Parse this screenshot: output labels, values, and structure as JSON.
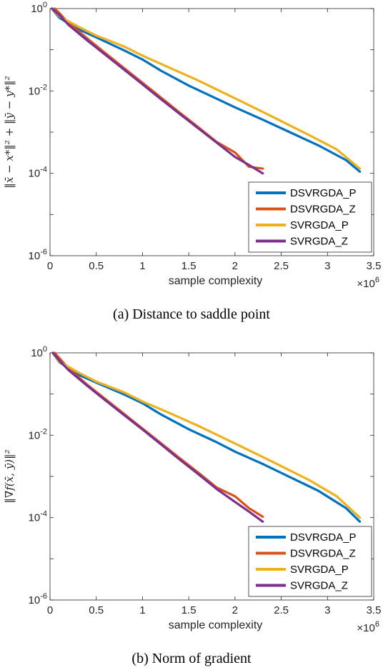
{
  "chart_data": [
    {
      "type": "line",
      "caption": "(a) Distance to saddle point",
      "xlabel": "sample complexity",
      "x_multiplier": "×10",
      "x_multiplier_exp": "6",
      "ylabel": "‖x̄ − x*‖² + ‖ȳ − y*‖²",
      "xlim": [
        0,
        3.5
      ],
      "ylim": [
        1e-06,
        1
      ],
      "yscale": "log",
      "xticks": [
        "0",
        "0.5",
        "1",
        "1.5",
        "2",
        "2.5",
        "3",
        "3.5"
      ],
      "yticks": [
        {
          "base": "10",
          "exp": "0"
        },
        {
          "base": "10",
          "exp": "-2"
        },
        {
          "base": "10",
          "exp": "-4"
        },
        {
          "base": "10",
          "exp": "-6"
        }
      ],
      "legend_position": "bottom-right",
      "series": [
        {
          "name": "DSVRGDA_P",
          "color": "#0072BD",
          "x": [
            0.02,
            0.1,
            0.3,
            0.5,
            0.8,
            1.0,
            1.2,
            1.5,
            1.8,
            2.0,
            2.3,
            2.6,
            2.9,
            3.2,
            3.35
          ],
          "y": [
            1.0,
            0.6,
            0.32,
            0.2,
            0.097,
            0.058,
            0.031,
            0.0135,
            0.0065,
            0.004,
            0.002,
            0.00098,
            0.00048,
            0.00021,
            0.00011
          ]
        },
        {
          "name": "DSVRGDA_Z",
          "color": "#D95319",
          "x": [
            0.05,
            0.1,
            0.2,
            0.4,
            0.6,
            0.8,
            1.0,
            1.2,
            1.4,
            1.6,
            1.8,
            2.0,
            2.15,
            2.3
          ],
          "y": [
            1.0,
            0.78,
            0.45,
            0.19,
            0.082,
            0.036,
            0.0158,
            0.0069,
            0.003,
            0.00134,
            0.00058,
            0.00032,
            0.000145,
            0.00013
          ]
        },
        {
          "name": "SVRGDA_P",
          "color": "#EDB120",
          "x": [
            0.02,
            0.1,
            0.3,
            0.5,
            0.8,
            1.0,
            1.3,
            1.6,
            2.0,
            2.4,
            2.8,
            3.1,
            3.35
          ],
          "y": [
            1.0,
            0.65,
            0.37,
            0.22,
            0.12,
            0.072,
            0.036,
            0.018,
            0.0066,
            0.0024,
            0.00085,
            0.00038,
            0.00013
          ]
        },
        {
          "name": "SVRGDA_Z",
          "color": "#7E2F8E",
          "x": [
            0.02,
            0.1,
            0.2,
            0.4,
            0.6,
            0.8,
            1.0,
            1.2,
            1.4,
            1.6,
            1.8,
            2.0,
            2.15,
            2.3
          ],
          "y": [
            1.0,
            0.7,
            0.4,
            0.17,
            0.075,
            0.033,
            0.0145,
            0.0063,
            0.0028,
            0.00125,
            0.00056,
            0.00025,
            0.00016,
            0.0001
          ]
        }
      ]
    },
    {
      "type": "line",
      "caption": "(b) Norm of gradient",
      "xlabel": "sample complexity",
      "x_multiplier": "×10",
      "x_multiplier_exp": "6",
      "ylabel": "‖∇f(x̄, ȳ)‖²",
      "xlim": [
        0,
        3.5
      ],
      "ylim": [
        1e-06,
        1
      ],
      "yscale": "log",
      "xticks": [
        "0",
        "0.5",
        "1",
        "1.5",
        "2",
        "2.5",
        "3",
        "3.5"
      ],
      "yticks": [
        {
          "base": "10",
          "exp": "0"
        },
        {
          "base": "10",
          "exp": "-2"
        },
        {
          "base": "10",
          "exp": "-4"
        },
        {
          "base": "10",
          "exp": "-6"
        }
      ],
      "legend_position": "bottom-right",
      "series": [
        {
          "name": "DSVRGDA_P",
          "color": "#0072BD",
          "x": [
            0.03,
            0.1,
            0.3,
            0.5,
            0.8,
            1.0,
            1.2,
            1.5,
            1.8,
            2.0,
            2.3,
            2.6,
            2.9,
            3.2,
            3.35
          ],
          "y": [
            1.0,
            0.6,
            0.3,
            0.19,
            0.098,
            0.06,
            0.032,
            0.014,
            0.0068,
            0.004,
            0.002,
            0.00095,
            0.00045,
            0.00017,
            8e-05
          ]
        },
        {
          "name": "DSVRGDA_Z",
          "color": "#D95319",
          "x": [
            0.05,
            0.1,
            0.2,
            0.4,
            0.6,
            0.8,
            1.0,
            1.2,
            1.4,
            1.6,
            1.8,
            2.0,
            2.15,
            2.3
          ],
          "y": [
            1.0,
            0.75,
            0.42,
            0.17,
            0.075,
            0.033,
            0.0145,
            0.0064,
            0.0028,
            0.00125,
            0.00054,
            0.00033,
            0.00017,
            0.000105
          ]
        },
        {
          "name": "SVRGDA_P",
          "color": "#EDB120",
          "x": [
            0.03,
            0.1,
            0.3,
            0.5,
            0.8,
            1.0,
            1.3,
            1.6,
            2.0,
            2.4,
            2.8,
            3.1,
            3.35
          ],
          "y": [
            1.0,
            0.62,
            0.34,
            0.2,
            0.11,
            0.066,
            0.034,
            0.017,
            0.0063,
            0.0023,
            0.00082,
            0.00033,
            0.0001
          ]
        },
        {
          "name": "SVRGDA_Z",
          "color": "#7E2F8E",
          "x": [
            0.03,
            0.1,
            0.2,
            0.4,
            0.6,
            0.8,
            1.0,
            1.2,
            1.4,
            1.6,
            1.8,
            2.0,
            2.15,
            2.3
          ],
          "y": [
            1.0,
            0.66,
            0.38,
            0.16,
            0.07,
            0.031,
            0.0138,
            0.006,
            0.0026,
            0.00115,
            0.0005,
            0.00024,
            0.00014,
            8e-05
          ]
        }
      ]
    }
  ]
}
